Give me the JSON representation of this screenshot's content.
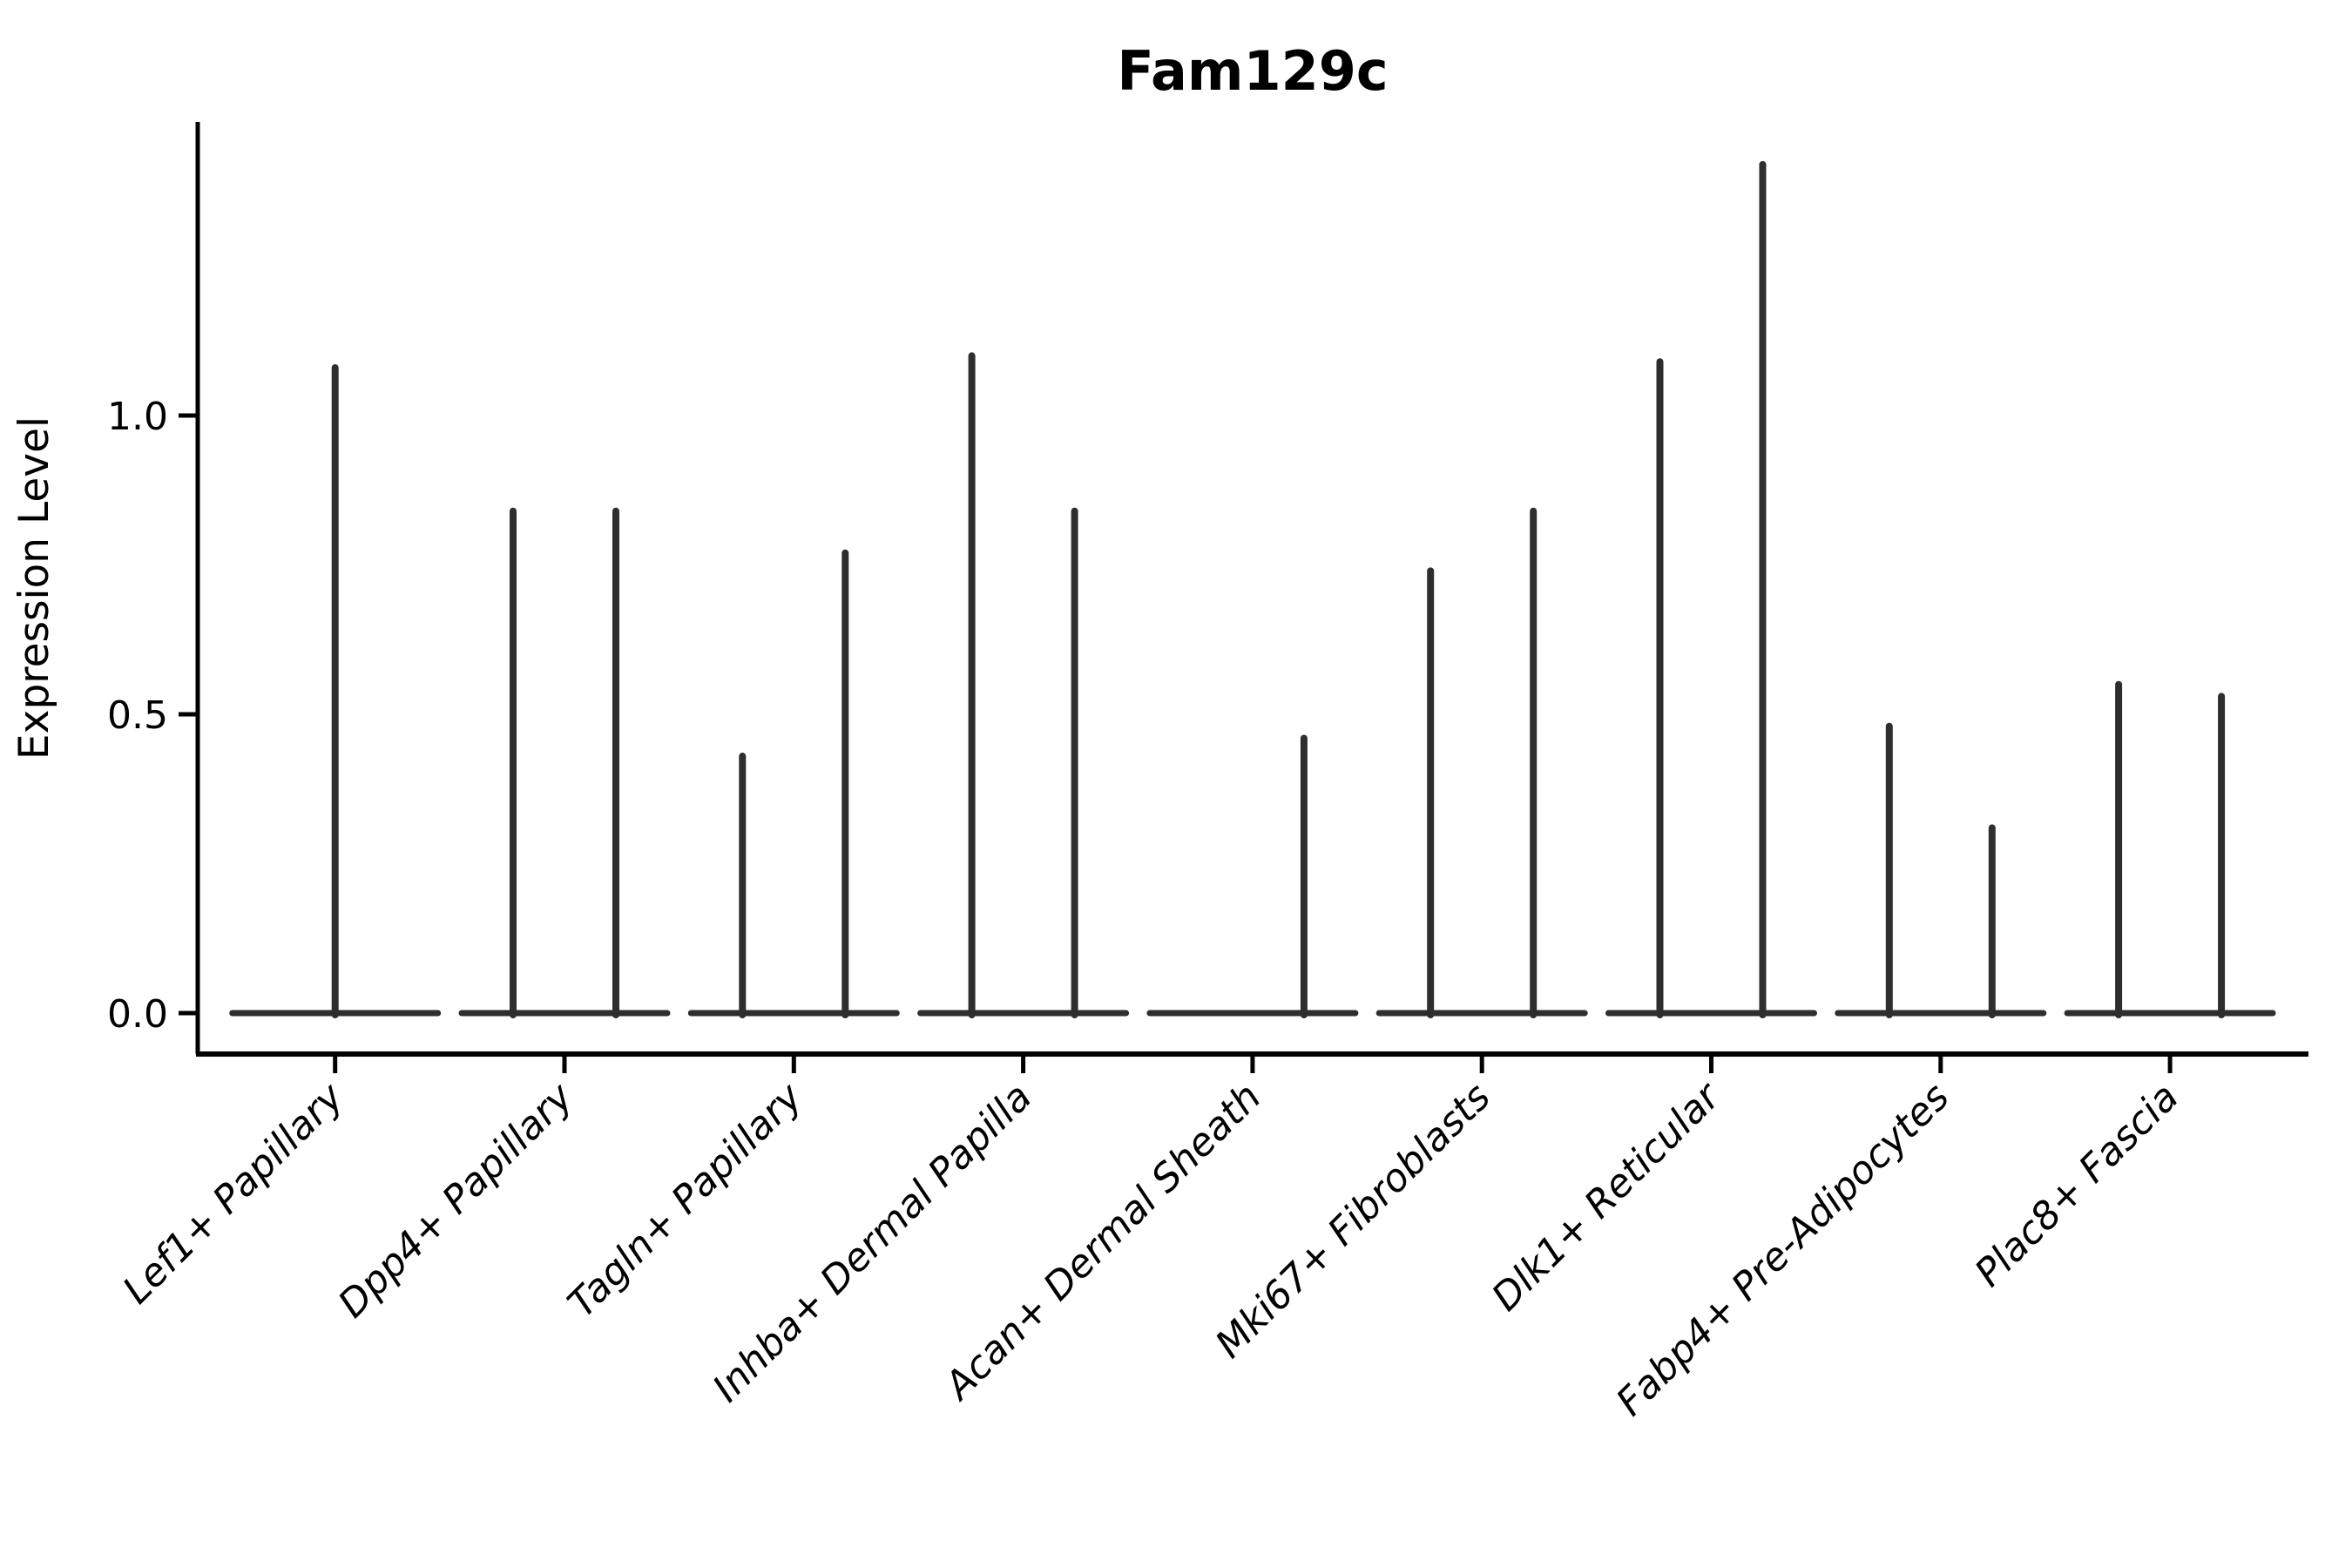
{
  "chart_data": {
    "type": "violin",
    "title": "Fam129c",
    "ylabel": "Expression Level",
    "xlabel": "",
    "yticks": [
      0.0,
      0.5,
      1.0
    ],
    "ytick_labels": [
      "0.0",
      "0.5",
      "1.0"
    ],
    "ylim": [
      0,
      1.49
    ],
    "grid": false,
    "legend": "none",
    "colors": {
      "violin": "#2e2e2e",
      "axis": "#000000",
      "text": "#000000",
      "background": "#ffffff"
    },
    "categories": [
      "Lef1+ Papillary",
      "Dpp4+ Papillary",
      "Tagln+ Papillary",
      "Inhba+ Dermal Papilla",
      "Acan+ Dermal Sheath",
      "Mki67+ Fibroblasts",
      "Dlk1+ Reticular",
      "Fabp4+ Pre-Adipocytes",
      "Plac8+ Fascia"
    ],
    "groups": [
      {
        "label": "Lef1+ Papillary",
        "violins": [
          {
            "position": "center",
            "max": 1.08
          }
        ]
      },
      {
        "label": "Dpp4+ Papillary",
        "violins": [
          {
            "position": "left",
            "max": 0.84
          },
          {
            "position": "right",
            "max": 0.84
          }
        ]
      },
      {
        "label": "Tagln+ Papillary",
        "violins": [
          {
            "position": "left",
            "max": 0.43
          },
          {
            "position": "right",
            "max": 0.77
          }
        ]
      },
      {
        "label": "Inhba+ Dermal Papilla",
        "violins": [
          {
            "position": "left",
            "max": 1.1
          },
          {
            "position": "right",
            "max": 0.84
          }
        ]
      },
      {
        "label": "Acan+ Dermal Sheath",
        "violins": [
          {
            "position": "right",
            "max": 0.46
          }
        ]
      },
      {
        "label": "Mki67+ Fibroblasts",
        "violins": [
          {
            "position": "left",
            "max": 0.74
          },
          {
            "position": "right",
            "max": 0.84
          }
        ]
      },
      {
        "label": "Dlk1+ Reticular",
        "violins": [
          {
            "position": "left",
            "max": 1.09
          },
          {
            "position": "right",
            "max": 1.42
          }
        ]
      },
      {
        "label": "Fabp4+ Pre-Adipocytes",
        "violins": [
          {
            "position": "left",
            "max": 0.48
          },
          {
            "position": "right",
            "max": 0.31
          }
        ]
      },
      {
        "label": "Plac8+ Fascia",
        "violins": [
          {
            "position": "left",
            "max": 0.55
          },
          {
            "position": "right",
            "max": 0.53
          }
        ]
      }
    ],
    "note": "Violin plot; each violin collapses to a flat base at 0 with a thin density spike up to its max expression value."
  }
}
